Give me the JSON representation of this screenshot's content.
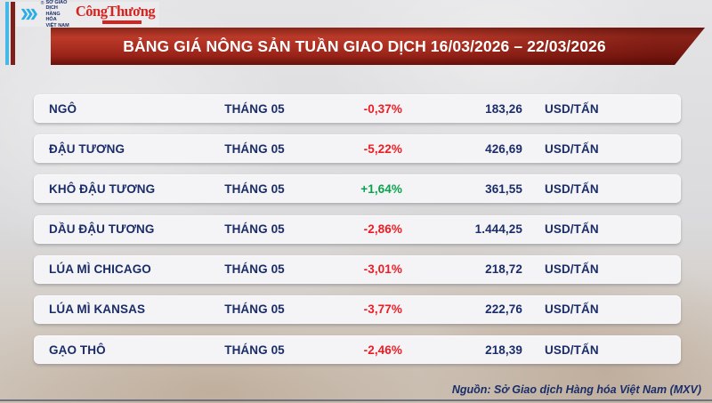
{
  "header": {
    "mxv": {
      "registered_mark": "®",
      "org_line1": "SỞ GIAO DỊCH",
      "org_line2": "HÀNG HÓA",
      "org_line3": "VIỆT NAM"
    },
    "congthuong_logo": "CôngThương"
  },
  "banner": {
    "title": "BẢNG GIÁ NÔNG SẢN TUẦN GIAO DỊCH 16/03/2026 – 22/03/2026"
  },
  "table": {
    "rows": [
      {
        "name": "NGÔ",
        "month": "THÁNG 05",
        "change": "-0,37%",
        "direction": "down",
        "price": "183,26",
        "unit": "USD/TẤN"
      },
      {
        "name": "ĐẬU TƯƠNG",
        "month": "THÁNG 05",
        "change": "-5,22%",
        "direction": "down",
        "price": "426,69",
        "unit": "USD/TẤN"
      },
      {
        "name": "KHÔ ĐẬU TƯƠNG",
        "month": "THÁNG 05",
        "change": "+1,64%",
        "direction": "up",
        "price": "361,55",
        "unit": "USD/TẤN"
      },
      {
        "name": "DẦU ĐẬU TƯƠNG",
        "month": "THÁNG 05",
        "change": "-2,86%",
        "direction": "down",
        "price": "1.444,25",
        "unit": "USD/TẤN"
      },
      {
        "name": "LÚA MÌ CHICAGO",
        "month": "THÁNG 05",
        "change": "-3,01%",
        "direction": "down",
        "price": "218,72",
        "unit": "USD/TẤN"
      },
      {
        "name": "LÚA MÌ KANSAS",
        "month": "THÁNG 05",
        "change": "-3,77%",
        "direction": "down",
        "price": "222,76",
        "unit": "USD/TẤN"
      },
      {
        "name": "GẠO THÔ",
        "month": "THÁNG 05",
        "change": "-2,46%",
        "direction": "down",
        "price": "218,39",
        "unit": "USD/TẤN"
      }
    ]
  },
  "footer": {
    "source": "Nguồn: Sở Giao dịch Hàng hóa Việt Nam (MXV)"
  },
  "colors": {
    "negative": "#ed1c24",
    "positive": "#0aa34d",
    "navy": "#1b2d69",
    "banner_red": "#aa2d20",
    "accent_blue": "#2bace3"
  },
  "chart_data": {
    "type": "table",
    "title": "BẢNG GIÁ NÔNG SẢN TUẦN GIAO DỊCH 16/03/2026 – 22/03/2026",
    "rows": [
      [
        "NGÔ",
        "THÁNG 05",
        "-0,37%",
        "183,26",
        "USD/TẤN"
      ],
      [
        "ĐẬU TƯƠNG",
        "THÁNG 05",
        "-5,22%",
        "426,69",
        "USD/TẤN"
      ],
      [
        "KHÔ ĐẬU TƯƠNG",
        "THÁNG 05",
        "+1,64%",
        "361,55",
        "USD/TẤN"
      ],
      [
        "DẦU ĐẬU TƯƠNG",
        "THÁNG 05",
        "-2,86%",
        "1.444,25",
        "USD/TẤN"
      ],
      [
        "LÚA MÌ CHICAGO",
        "THÁNG 05",
        "-3,01%",
        "218,72",
        "USD/TẤN"
      ],
      [
        "LÚA MÌ KANSAS",
        "THÁNG 05",
        "-3,77%",
        "222,76",
        "USD/TẤN"
      ],
      [
        "GẠO THÔ",
        "THÁNG 05",
        "-2,46%",
        "218,39",
        "USD/TẤN"
      ]
    ],
    "change_pct": [
      -0.37,
      -5.22,
      1.64,
      -2.86,
      -3.01,
      -3.77,
      -2.46
    ],
    "prices_usd_per_ton": [
      183.26,
      426.69,
      361.55,
      1444.25,
      218.72,
      222.76,
      218.39
    ],
    "source": "Nguồn: Sở Giao dịch Hàng hóa Việt Nam (MXV)"
  }
}
